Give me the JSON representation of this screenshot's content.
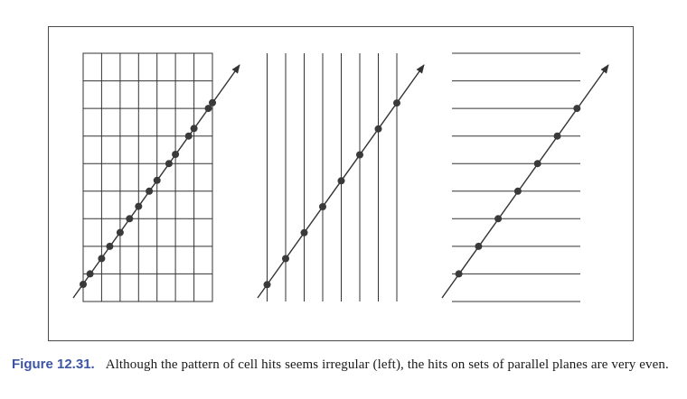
{
  "figure": {
    "label": "Figure 12.31.",
    "caption": "Although the pattern of cell hits seems irregular (left), the hits on sets of parallel planes are very even.",
    "colors": {
      "caption_label": "#3d55a3",
      "lines": "#333333",
      "dots": "#3a3a3a"
    },
    "panels": [
      {
        "name": "grid-panel",
        "grid": "vertical-and-horizontal"
      },
      {
        "name": "vertical-planes-panel",
        "grid": "vertical"
      },
      {
        "name": "horizontal-planes-panel",
        "grid": "horizontal"
      }
    ]
  }
}
